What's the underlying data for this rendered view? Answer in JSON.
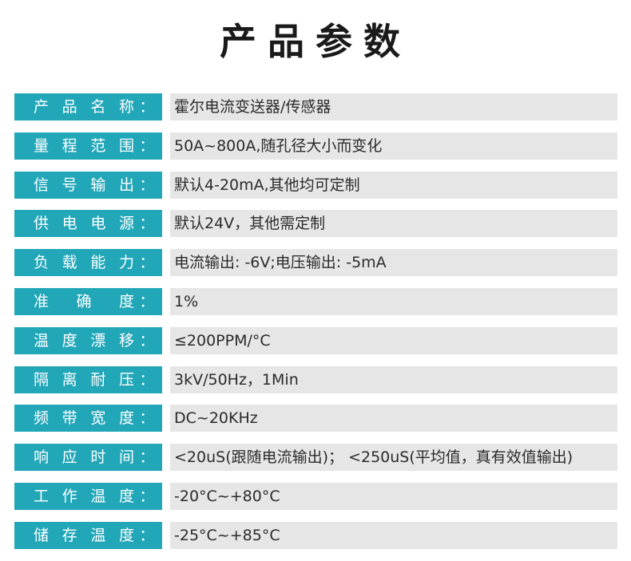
{
  "title": "产品参数",
  "colon": "：",
  "rows": [
    {
      "label": "产品名称",
      "value": "霍尔电流变送器/传感器"
    },
    {
      "label": "量程范围",
      "value": "50A~800A,随孔径大小而变化"
    },
    {
      "label": "信号输出",
      "value": "默认4-20mA,其他均可定制"
    },
    {
      "label": "供电电源",
      "value": "默认24V，其他需定制"
    },
    {
      "label": "负载能力",
      "value": "电流输出: -6V;电压输出: -5mA"
    },
    {
      "label": "准确度",
      "value": "1%"
    },
    {
      "label": "温度漂移",
      "value": "≤200PPM/°C"
    },
    {
      "label": "隔离耐压",
      "value": "3kV/50Hz，1Min"
    },
    {
      "label": "频带宽度",
      "value": "DC~20KHz"
    },
    {
      "label": "响应时间",
      "value": "<20uS(跟随电流输出)； <250uS(平均值，真有效值输出)"
    },
    {
      "label": "工作温度",
      "value": "-20°C~+80°C"
    },
    {
      "label": "储存温度",
      "value": "-25°C~+85°C"
    }
  ],
  "colors": {
    "label_bg": "#22a7b9",
    "value_bg": "#e6e6e6",
    "title_text": "#1a1a1a"
  }
}
